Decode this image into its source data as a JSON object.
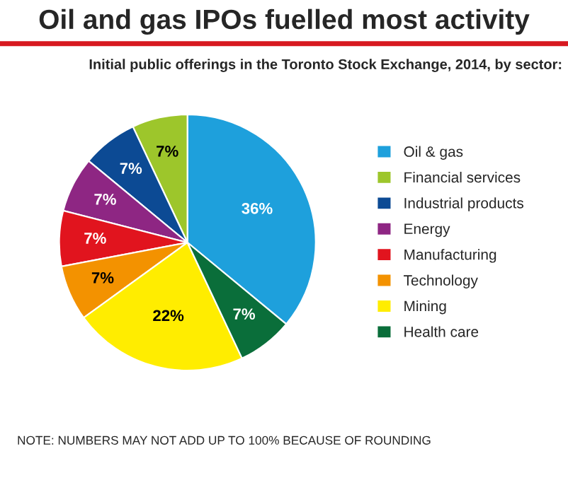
{
  "chart_data": {
    "type": "pie",
    "title": "Oil and gas IPOs fuelled most activity",
    "subtitle": "Initial public offerings in the Toronto Stock Exchange, 2014, by sector:",
    "categories": [
      "Oil & gas",
      "Financial services",
      "Industrial products",
      "Energy",
      "Manufacturing",
      "Technology",
      "Mining",
      "Health care"
    ],
    "values": [
      36,
      7,
      7,
      7,
      7,
      7,
      22,
      7
    ],
    "value_labels": [
      "36%",
      "7%",
      "7%",
      "7%",
      "7%",
      "7%",
      "22%",
      "7%"
    ],
    "colors": [
      "#1ea0dc",
      "#9dc62b",
      "#0c4a94",
      "#8e2683",
      "#e1141e",
      "#f39200",
      "#ffed00",
      "#0a6e3a"
    ],
    "legend": "right",
    "annotations": [
      "NOTE: NUMBERS MAY NOT ADD UP TO 100% BECAUSE OF ROUNDING"
    ]
  }
}
